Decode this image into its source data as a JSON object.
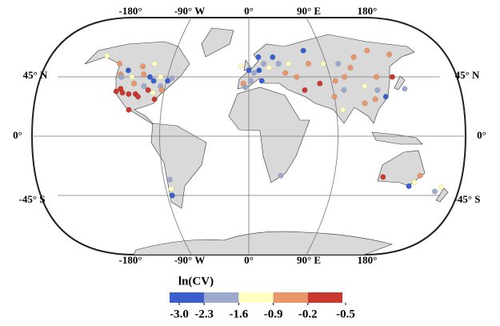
{
  "map": {
    "top_labels": [
      "-180°",
      "-90° W",
      "0°",
      "90° E",
      "180°"
    ],
    "bottom_labels": [
      "-180°",
      "-90° W",
      "0°",
      "90° E",
      "180°"
    ],
    "left_labels": [
      "45° N",
      "0°",
      "-45° S"
    ],
    "right_labels": [
      "45° N",
      "0°",
      "-45° S"
    ],
    "sites": {
      "lon": [
        -122,
        -118,
        -115,
        -112,
        -105,
        -100,
        -97,
        -95,
        -90,
        -88,
        -85,
        -80,
        -75,
        -78,
        -82,
        -110,
        -120,
        -100,
        -93,
        -83,
        -72,
        -117,
        -105,
        -130,
        -150,
        -95,
        -106,
        -102,
        -70,
        -71,
        -72,
        0,
        5,
        10,
        15,
        20,
        -5,
        -3,
        12,
        25,
        30,
        35,
        40,
        10,
        -8,
        2,
        60,
        75,
        90,
        100,
        110,
        130,
        150,
        80,
        90,
        105,
        115,
        120,
        110,
        100,
        120,
        135,
        75,
        80,
        85,
        65,
        50,
        45,
        140,
        60,
        118,
        148,
        150,
        145,
        172,
        175,
        28
      ],
      "lat": [
        47,
        34,
        36,
        33,
        40,
        32,
        30,
        38,
        35,
        42,
        33,
        38,
        42,
        35,
        28,
        45,
        45,
        47,
        45,
        45,
        44,
        50,
        53,
        55,
        61,
        55,
        32,
        20,
        -33,
        -40,
        -45,
        50,
        48,
        50,
        55,
        52,
        40,
        37,
        42,
        60,
        55,
        48,
        55,
        60,
        53,
        42,
        55,
        55,
        55,
        52,
        60,
        65,
        62,
        42,
        45,
        38,
        35,
        30,
        28,
        25,
        45,
        45,
        30,
        20,
        35,
        40,
        35,
        45,
        36,
        65,
        -31,
        -35,
        -30,
        -38,
        -42,
        -39,
        -30
      ],
      "values": [
        -0.5,
        -0.1,
        -0.1,
        -0.1,
        -0.5,
        -0.1,
        -0.1,
        -2.0,
        -0.1,
        -2.7,
        -1.2,
        -2.0,
        -2.7,
        -0.5,
        -0.1,
        -1.2,
        -2.0,
        -0.5,
        -2.7,
        -1.2,
        -2.0,
        -2.7,
        -0.5,
        -0.5,
        -1.2,
        -1.2,
        -0.1,
        -0.1,
        -2.0,
        -1.2,
        -2.7,
        -2.7,
        -2.0,
        -2.7,
        -2.0,
        -1.2,
        -0.5,
        -2.0,
        -2.7,
        -2.7,
        -2.0,
        -0.5,
        -1.2,
        -2.7,
        -1.2,
        -2.0,
        -0.5,
        -1.2,
        -2.0,
        -0.5,
        -0.5,
        -0.5,
        -0.5,
        -0.5,
        -0.5,
        -1.2,
        -2.0,
        -2.7,
        -0.5,
        -0.5,
        -0.5,
        -0.1,
        -0.5,
        -1.2,
        -2.0,
        -0.1,
        -0.1,
        -0.5,
        -2.0,
        -2.7,
        -0.1,
        -1.2,
        -0.5,
        -2.7,
        -2.0,
        -1.2,
        -2.0
      ]
    },
    "legend": {
      "title": "ln(CV)",
      "ticks": [
        {
          "value": -3,
          "label": "-3.0"
        },
        -2.3,
        -1.6,
        -0.9,
        -0.2,
        -0.5
      ],
      "colors": [
        "#3a5fcd",
        "#9da9cc",
        "#ffffc0",
        "#e9966a",
        "#c8382e"
      ]
    }
  }
}
